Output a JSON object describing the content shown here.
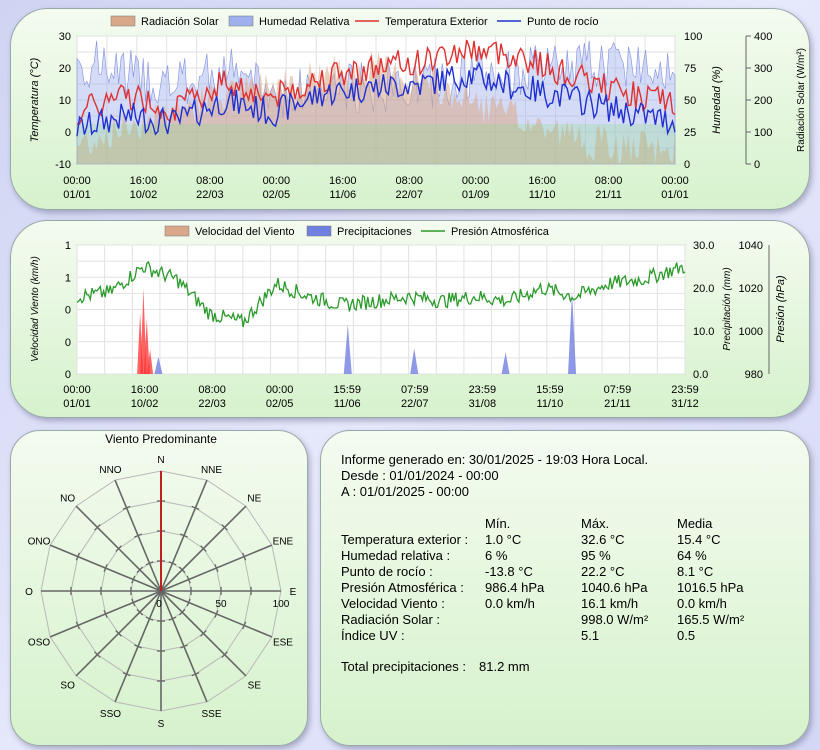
{
  "colors": {
    "solar": "#d9a88a",
    "humidity": "#9fb0ee",
    "temp": "#e03030",
    "dew": "#2030d0",
    "wind": "#d9a88a",
    "rain": "#7080e0",
    "pressure": "#2a9a2a",
    "windrose": "#c02020"
  },
  "chart_data": [
    {
      "type": "line",
      "legend": [
        "Radiación Solar",
        "Humedad Relativa",
        "Temperatura Exterior",
        "Punto de rocío"
      ],
      "ylabel_left": "Temperatura (°C)",
      "ylabel_right1": "Humedad (%)",
      "ylabel_right2": "Radiación Solar (W/m²)",
      "ylim_temp": [
        -10,
        30
      ],
      "yticks_temp": [
        "30",
        "20",
        "10",
        "0",
        "-10"
      ],
      "ylim_hum": [
        0,
        100
      ],
      "yticks_hum": [
        "100",
        "75",
        "50",
        "25",
        "0"
      ],
      "ylim_solar": [
        0,
        400
      ],
      "yticks_solar": [
        "400",
        "300",
        "200",
        "100",
        "0"
      ],
      "xticks": [
        [
          "00:00",
          "01/01"
        ],
        [
          "16:00",
          "10/02"
        ],
        [
          "08:00",
          "22/03"
        ],
        [
          "00:00",
          "02/05"
        ],
        [
          "16:00",
          "11/06"
        ],
        [
          "08:00",
          "22/07"
        ],
        [
          "00:00",
          "01/09"
        ],
        [
          "16:00",
          "11/10"
        ],
        [
          "08:00",
          "21/11"
        ],
        [
          "00:00",
          "01/01"
        ]
      ],
      "x_days": [
        0,
        30,
        60,
        90,
        120,
        150,
        180,
        210,
        240,
        270,
        300,
        330,
        366
      ],
      "temp": [
        6,
        12,
        7,
        16,
        11,
        17,
        20,
        22,
        26,
        24,
        18,
        13,
        9
      ],
      "dew": [
        1,
        5,
        3,
        10,
        6,
        12,
        14,
        15,
        18,
        14,
        11,
        7,
        3
      ],
      "humidity": [
        80,
        72,
        60,
        75,
        55,
        58,
        60,
        62,
        68,
        72,
        76,
        80,
        78
      ],
      "solar": [
        60,
        120,
        170,
        210,
        250,
        280,
        300,
        260,
        200,
        140,
        90,
        50,
        40
      ]
    },
    {
      "type": "line",
      "legend": [
        "Velocidad del Viento",
        "Precipitaciones",
        "Presión Atmosférica"
      ],
      "ylabel_left": "Velocidad Viento (km/h)",
      "ylabel_right1": "Precipitación (mm)",
      "ylabel_right2": "Presión (hPa)",
      "yticks_wind": [
        "1",
        "1",
        "0",
        "0",
        "0"
      ],
      "ylim_rain": [
        0,
        30
      ],
      "yticks_rain": [
        "30.0",
        "20.0",
        "10.0",
        "0.0"
      ],
      "ylim_press": [
        980,
        1040
      ],
      "yticks_press": [
        "1040",
        "1020",
        "1000",
        "980"
      ],
      "xticks": [
        [
          "00:00",
          "01/01"
        ],
        [
          "16:00",
          "10/02"
        ],
        [
          "08:00",
          "22/03"
        ],
        [
          "00:00",
          "02/05"
        ],
        [
          "15:59",
          "11/06"
        ],
        [
          "07:59",
          "22/07"
        ],
        [
          "23:59",
          "31/08"
        ],
        [
          "15:59",
          "11/10"
        ],
        [
          "07:59",
          "21/11"
        ],
        [
          "23:59",
          "31/12"
        ]
      ],
      "x_days": [
        0,
        20,
        40,
        60,
        80,
        100,
        120,
        140,
        160,
        180,
        200,
        220,
        240,
        260,
        280,
        300,
        320,
        340,
        366
      ],
      "pressure": [
        1016,
        1018,
        1030,
        1024,
        1008,
        1004,
        1022,
        1016,
        1012,
        1014,
        1016,
        1014,
        1016,
        1014,
        1020,
        1016,
        1022,
        1024,
        1030
      ],
      "rain_days": [
        49,
        163,
        203,
        258,
        298
      ],
      "rain_values": [
        4.0,
        11.5,
        6.0,
        5.0,
        19.0
      ],
      "wind_event_days": [
        38,
        40,
        42,
        44
      ],
      "wind_event_values": [
        0.5,
        0.7,
        0.45,
        0.2
      ]
    }
  ],
  "windrose": {
    "title": "Viento Predominante",
    "directions": [
      "N",
      "NNE",
      "NE",
      "ENE",
      "E",
      "ESE",
      "SE",
      "SSE",
      "S",
      "SSO",
      "SO",
      "OSO",
      "O",
      "ONO",
      "NO",
      "NNO"
    ],
    "scale": [
      "0",
      "50",
      "100"
    ],
    "values": [
      100,
      0,
      0,
      0,
      0,
      0,
      0,
      0,
      0,
      0,
      0,
      0,
      0,
      0,
      0,
      0
    ]
  },
  "report": {
    "generated": "Informe generado en: 30/01/2025 - 19:03 Hora Local.",
    "from": "Desde : 01/01/2024 - 00:00",
    "to": "A : 01/01/2025 - 00:00",
    "headers": [
      "Mín.",
      "Máx.",
      "Media"
    ],
    "rows": [
      [
        "Temperatura exterior :",
        "1.0 °C",
        "32.6 °C",
        "15.4 °C"
      ],
      [
        "Humedad relativa :",
        " 6 %",
        "95 %",
        "64 %"
      ],
      [
        "Punto de rocío :",
        "-13.8 °C",
        "22.2 °C",
        "8.1 °C"
      ],
      [
        "Presión Atmosférica :",
        "986.4 hPa",
        "1040.6 hPa",
        "1016.5 hPa"
      ],
      [
        "Velocidad Viento :",
        "0.0 km/h",
        "16.1 km/h",
        "0.0 km/h"
      ],
      [
        "Radiación Solar :",
        "",
        "998.0 W/m²",
        "165.5 W/m²"
      ],
      [
        "Índice UV :",
        "",
        "5.1",
        "0.5"
      ]
    ],
    "total_label": "Total precipitaciones :",
    "total_value": "81.2 mm"
  }
}
